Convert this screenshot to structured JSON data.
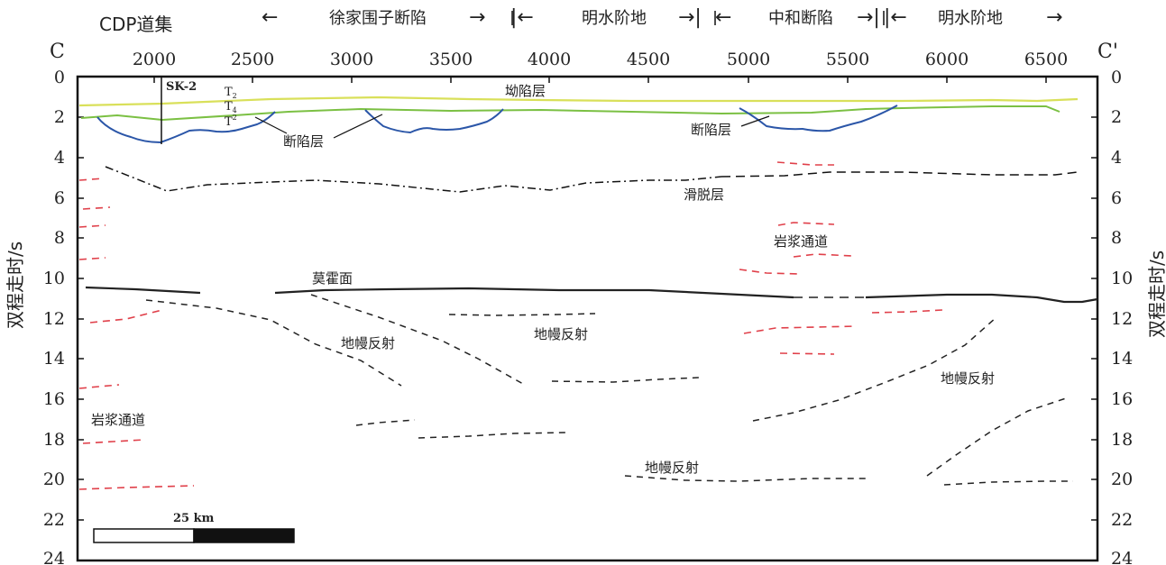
{
  "header": {
    "cdp_label": "CDP道集",
    "zones": [
      {
        "name": "徐家围子断陷",
        "left_arrow": "←",
        "right_arrow": "→"
      },
      {
        "name": "明水阶地",
        "left_arrow": "|←",
        "right_arrow": "→|"
      },
      {
        "name": "中和断陷",
        "left_arrow": "←",
        "right_arrow": "→|"
      },
      {
        "name": "明水阶地",
        "left_arrow": "|←",
        "right_arrow": "→"
      }
    ],
    "end_left": "C",
    "end_right": "C'"
  },
  "axes": {
    "y_label_left": "双程走时/s",
    "y_label_right": "双程走时/s",
    "x_ticks": [
      "2000",
      "2500",
      "3000",
      "3500",
      "4000",
      "4500",
      "5000",
      "5500",
      "6000",
      "6500"
    ],
    "y_ticks": [
      "0",
      "2",
      "4",
      "6",
      "8",
      "10",
      "12",
      "14",
      "16",
      "18",
      "20",
      "22",
      "24"
    ]
  },
  "labels": {
    "well": "SK-2",
    "t2_main": "T",
    "t2_sub": "2",
    "t4_main": "T",
    "t4_sub": "4",
    "t5_main": "T",
    "t5_sup": "2",
    "sag_layer": "坳陷层",
    "rift_layer_1": "断陷层",
    "rift_layer_2": "断陷层",
    "detachment": "滑脱层",
    "magma_channel_right": "岩浆通道",
    "magma_channel_left": "岩浆通道",
    "moho": "莫霍面",
    "mantle_1": "地幔反射",
    "mantle_2": "地幔反射",
    "mantle_3": "地幔反射",
    "mantle_4": "地幔反射",
    "scale": "25 km"
  },
  "colors": {
    "sag_line": "#d9e05a",
    "t4_line": "#7bc043",
    "basement": "#2b56a8",
    "magma": "#e0404a",
    "reflector": "#222222"
  }
}
